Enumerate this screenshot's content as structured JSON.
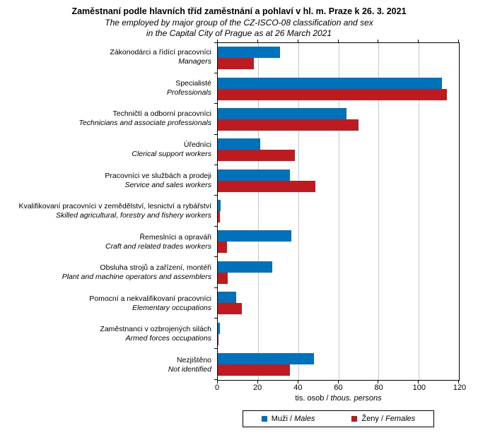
{
  "title": {
    "line1_cz": "Zaměstnaní podle hlavních tříd zaměstnání a pohlaví v hl. m. Praze k 26. 3. 2021",
    "line2_en": "The employed by major group of the CZ-ISCO-08 classification and sex",
    "line3_en": "in the Capital City of Prague as at 26 March 2021"
  },
  "axis": {
    "label_prefix": "tis. osob / ",
    "label_italic": "thous. persons"
  },
  "legend": {
    "items": [
      {
        "prefix": "Muži / ",
        "name": "Males",
        "color_key": "males"
      },
      {
        "prefix": "Ženy / ",
        "name": "Females",
        "color_key": "females"
      }
    ]
  },
  "chart_data": {
    "type": "bar",
    "orientation": "horizontal",
    "title": "Zaměstnaní podle hlavních tříd zaměstnání a pohlaví v hl. m. Praze k 26. 3. 2021",
    "subtitle": "The employed by major group of the CZ-ISCO-08 classification and sex in the Capital City of Prague as at 26 March 2021",
    "xlabel": "tis. osob / thous. persons",
    "xlim": [
      0,
      120
    ],
    "xticks": [
      0,
      20,
      40,
      60,
      80,
      100,
      120
    ],
    "grid": "vertical-gridlines",
    "legend_position": "bottom",
    "categories": [
      {
        "cz": "Zákonodárci a řídící pracovníci",
        "en": "Managers"
      },
      {
        "cz": "Specialisté",
        "en": "Professionals"
      },
      {
        "cz": "Techničtí a odborní pracovníci",
        "en": "Technicians and associate professionals"
      },
      {
        "cz": "Úředníci",
        "en": "Clerical support workers"
      },
      {
        "cz": "Pracovníci ve službách a prodeji",
        "en": "Service and sales workers"
      },
      {
        "cz": "Kvalifikovaní pracovníci v zemědělství, lesnictví a rybářství",
        "en": "Skilled agricultural, forestry and fishery workers"
      },
      {
        "cz": "Řemeslníci a opraváři",
        "en": "Craft and related trades workers"
      },
      {
        "cz": "Obsluha strojů a zařízení, montéři",
        "en": "Plant and machine operators and assemblers"
      },
      {
        "cz": "Pomocní a nekvalifikovaní pracovníci",
        "en": "Elementary occupations"
      },
      {
        "cz": "Zaměstnanci v ozbrojených silách",
        "en": "Armed forces occupations"
      },
      {
        "cz": "Nezjištěno",
        "en": "Not identified"
      }
    ],
    "series": [
      {
        "name": "Muži / Males",
        "color_key": "males",
        "values": [
          31,
          111.5,
          64,
          21,
          36,
          1.5,
          36.5,
          27,
          9,
          1,
          48
        ]
      },
      {
        "name": "Ženy / Females",
        "color_key": "females",
        "values": [
          18,
          114,
          70,
          38.5,
          48.5,
          0.9,
          4.5,
          5,
          12,
          0.1,
          36
        ]
      }
    ],
    "colors": {
      "males": "#0072BC",
      "females": "#BE1B21",
      "gridline": "#C8C8C8",
      "axis": "#000000"
    }
  }
}
